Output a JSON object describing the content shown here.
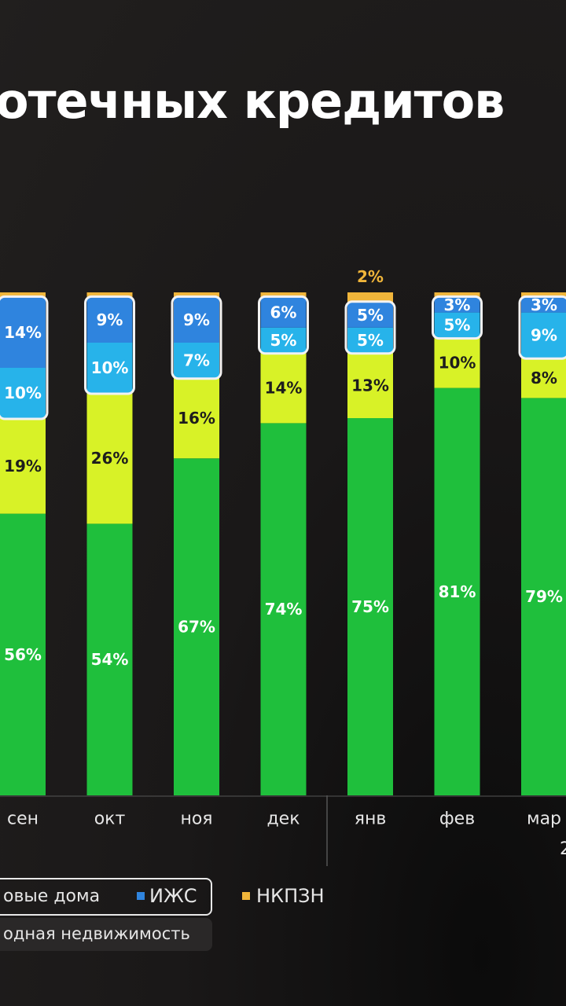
{
  "title": "отечных кредитов",
  "legend": {
    "new_homes": "овые дома",
    "izhs": "ИЖС",
    "nkpzn": "НКПЗН",
    "secondary": "одная недвижимость"
  },
  "year_fragment": "2",
  "colors": {
    "new_homes": "#1fbf3c",
    "secondary": "#d8f227",
    "izhs_low": "#27b3ea",
    "izhs_high": "#2f84de",
    "nkpzn": "#f0b53a",
    "background": "#211f1e"
  },
  "chart_data": {
    "type": "bar",
    "stacked": true,
    "categories": [
      "сен",
      "окт",
      "ноя",
      "дек",
      "янв",
      "фев",
      "мар"
    ],
    "ylim": [
      0,
      100
    ],
    "series": [
      {
        "key": "new",
        "name": "овые дома",
        "values": [
          56,
          54,
          67,
          74,
          75,
          81,
          79
        ],
        "labels": [
          "56%",
          "54%",
          "67%",
          "74%",
          "75%",
          "81%",
          "79%"
        ]
      },
      {
        "key": "secondary",
        "name": "одная недвижимость",
        "values": [
          19,
          26,
          16,
          14,
          13,
          10,
          8
        ],
        "labels": [
          "19%",
          "26%",
          "16%",
          "14%",
          "13%",
          "10%",
          "8%"
        ]
      },
      {
        "key": "izhs_a",
        "name": "ИЖС",
        "values": [
          10,
          10,
          7,
          5,
          5,
          5,
          9
        ],
        "labels": [
          "10%",
          "10%",
          "7%",
          "5%",
          "5%",
          "5%",
          "9%"
        ]
      },
      {
        "key": "izhs_b",
        "name": "ИЖС",
        "values": [
          14,
          9,
          9,
          6,
          5,
          3,
          3
        ],
        "labels": [
          "14%",
          "9%",
          "9%",
          "6%",
          "5%",
          "3%",
          "3%"
        ]
      },
      {
        "key": "nkpzn",
        "name": "НКПЗН",
        "values": [
          1,
          1,
          1,
          1,
          2,
          1,
          1
        ],
        "labels": [
          "",
          "",
          "",
          "",
          "2%",
          "",
          ""
        ]
      }
    ]
  }
}
